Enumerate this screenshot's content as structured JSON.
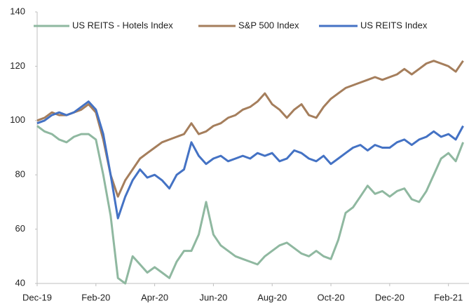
{
  "chart_data": {
    "type": "line",
    "x": [
      0,
      0.25,
      0.5,
      0.75,
      1,
      1.25,
      1.5,
      1.75,
      2,
      2.25,
      2.5,
      2.75,
      3,
      3.25,
      3.5,
      3.75,
      4,
      4.25,
      4.5,
      4.75,
      5,
      5.25,
      5.5,
      5.75,
      6,
      6.25,
      6.5,
      6.75,
      7,
      7.25,
      7.5,
      7.75,
      8,
      8.25,
      8.5,
      8.75,
      9,
      9.25,
      9.5,
      9.75,
      10,
      10.25,
      10.5,
      10.75,
      11,
      11.25,
      11.5,
      11.75,
      12,
      12.25,
      12.5,
      12.75,
      13,
      13.25,
      13.5,
      13.75,
      14,
      14.25,
      14.5
    ],
    "series": [
      {
        "name": "US REITS - Hotels Index",
        "color": "#8fb8a0",
        "values": [
          98,
          96,
          95,
          93,
          92,
          94,
          95,
          95,
          93,
          80,
          65,
          42,
          40,
          50,
          47,
          44,
          46,
          44,
          42,
          48,
          52,
          52,
          58,
          70,
          58,
          54,
          52,
          50,
          49,
          48,
          47,
          50,
          52,
          54,
          55,
          53,
          51,
          50,
          52,
          50,
          49,
          56,
          66,
          68,
          72,
          76,
          73,
          74,
          72,
          74,
          75,
          71,
          70,
          74,
          80,
          86,
          88,
          85,
          92
        ]
      },
      {
        "name": "S&P 500 Index",
        "color": "#a57e5c",
        "values": [
          100,
          101,
          103,
          102,
          102,
          103,
          104,
          106,
          103,
          93,
          80,
          72,
          78,
          82,
          86,
          88,
          90,
          92,
          93,
          94,
          95,
          99,
          95,
          96,
          98,
          99,
          101,
          102,
          104,
          105,
          107,
          110,
          106,
          104,
          101,
          104,
          106,
          102,
          101,
          105,
          108,
          110,
          112,
          113,
          114,
          115,
          116,
          115,
          116,
          117,
          119,
          117,
          119,
          121,
          122,
          121,
          120,
          118,
          122
        ]
      },
      {
        "name": "US REITS Index",
        "color": "#4472c4",
        "values": [
          99,
          100,
          102,
          103,
          102,
          103,
          105,
          107,
          104,
          95,
          80,
          64,
          72,
          78,
          82,
          79,
          80,
          78,
          75,
          80,
          82,
          92,
          87,
          84,
          86,
          87,
          85,
          86,
          87,
          86,
          88,
          87,
          88,
          85,
          86,
          89,
          88,
          86,
          85,
          87,
          84,
          86,
          88,
          90,
          91,
          89,
          91,
          90,
          90,
          92,
          93,
          91,
          93,
          94,
          96,
          94,
          95,
          93,
          98
        ]
      }
    ],
    "xlim": [
      0,
      14.7
    ],
    "xticks": [
      {
        "value": 0,
        "label": "Dec-19"
      },
      {
        "value": 2,
        "label": "Feb-20"
      },
      {
        "value": 4,
        "label": "Apr-20"
      },
      {
        "value": 6,
        "label": "Jun-20"
      },
      {
        "value": 8,
        "label": "Aug-20"
      },
      {
        "value": 10,
        "label": "Oct-20"
      },
      {
        "value": 12,
        "label": "Dec-20"
      },
      {
        "value": 14,
        "label": "Feb-21"
      }
    ],
    "ylim": [
      40,
      140
    ],
    "yticks": [
      40,
      60,
      80,
      100,
      120,
      140
    ],
    "grid": false,
    "legend": "top"
  }
}
